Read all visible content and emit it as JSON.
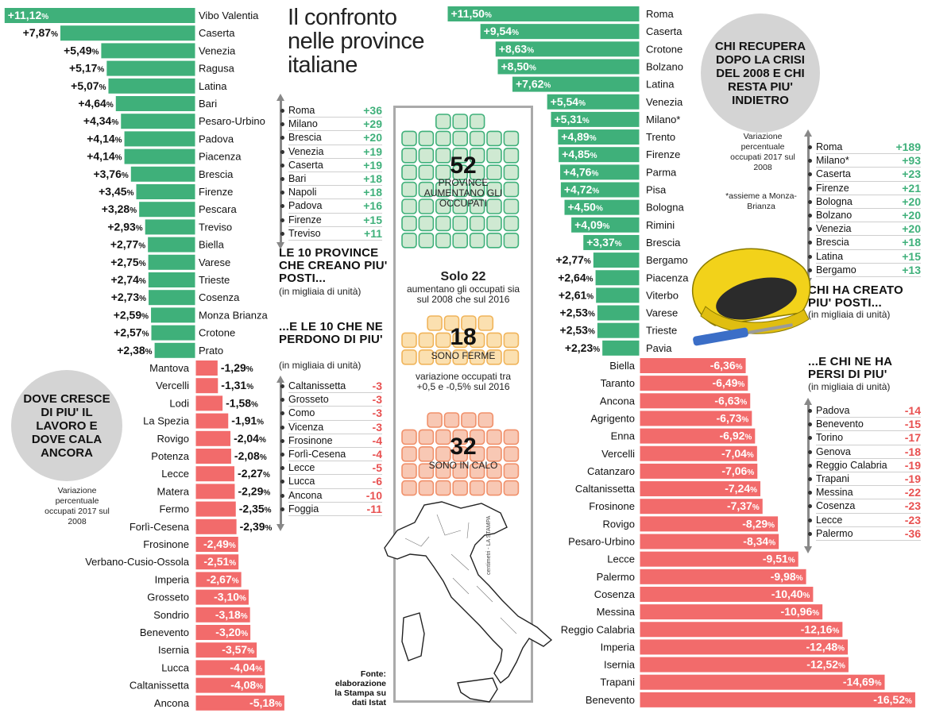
{
  "headline": "Il confronto nelle province italiane",
  "left_circle": {
    "title": "DOVE CRESCE DI PIU' IL LAVORO E DOVE CALA ANCORA",
    "note": "Variazione percentuale occupati 2017 sul 2008"
  },
  "right_circle": {
    "title": "CHI RECUPERA DOPO LA CRISI DEL 2008 E CHI RESTA PIU' INDIETRO",
    "note": "Variazione percentuale occupati 2017 sul 2008",
    "footnote": "*assieme a Monza-Brianza"
  },
  "colors": {
    "positive": "#3fb07a",
    "negative": "#f26b6b",
    "circle": "#d4d4d4",
    "helmet": "#f2d21a"
  },
  "chart_data": [
    {
      "type": "bar",
      "title": "Variazione percentuale occupati 2017 sul 2008 (province A)",
      "orientation": "horizontal",
      "unit": "%",
      "categories": [
        "Vibo Valentia",
        "Caserta",
        "Venezia",
        "Ragusa",
        "Latina",
        "Bari",
        "Pesaro-Urbino",
        "Padova",
        "Piacenza",
        "Brescia",
        "Firenze",
        "Pescara",
        "Treviso",
        "Biella",
        "Varese",
        "Trieste",
        "Cosenza",
        "Monza Brianza",
        "Crotone",
        "Prato",
        "Mantova",
        "Vercelli",
        "Lodi",
        "La Spezia",
        "Rovigo",
        "Potenza",
        "Lecce",
        "Matera",
        "Fermo",
        "Forlì-Cesena",
        "Frosinone",
        "Verbano-Cusio-Ossola",
        "Imperia",
        "Grosseto",
        "Sondrio",
        "Benevento",
        "Isernia",
        "Lucca",
        "Caltanissetta",
        "Ancona"
      ],
      "values": [
        11.12,
        7.87,
        5.49,
        5.17,
        5.07,
        4.64,
        4.34,
        4.14,
        4.14,
        3.76,
        3.45,
        3.28,
        2.93,
        2.77,
        2.75,
        2.74,
        2.73,
        2.59,
        2.57,
        2.38,
        -1.29,
        -1.31,
        -1.58,
        -1.91,
        -2.04,
        -2.08,
        -2.27,
        -2.29,
        -2.35,
        -2.39,
        -2.49,
        -2.51,
        -2.67,
        -3.1,
        -3.18,
        -3.2,
        -3.57,
        -4.04,
        -4.08,
        -5.18
      ],
      "labels": [
        "+11,12",
        "+7,87",
        "+5,49",
        "+5,17",
        "+5,07",
        "+4,64",
        "+4,34",
        "+4,14",
        "+4,14",
        "+3,76",
        "+3,45",
        "+3,28",
        "+2,93",
        "+2,77",
        "+2,75",
        "+2,74",
        "+2,73",
        "+2,59",
        "+2,57",
        "+2,38",
        "-1,29",
        "-1,31",
        "-1,58",
        "-1,91",
        "-2,04",
        "-2,08",
        "-2,27",
        "-2,29",
        "-2,35",
        "-2,39",
        "-2,49",
        "-2,51",
        "-2,67",
        "-3,10",
        "-3,18",
        "-3,20",
        "-3,57",
        "-4,04",
        "-4,08",
        "-5,18"
      ]
    },
    {
      "type": "bar",
      "title": "Variazione percentuale occupati 2017 sul 2008 (province B)",
      "orientation": "horizontal",
      "unit": "%",
      "categories": [
        "Roma",
        "Caserta",
        "Crotone",
        "Bolzano",
        "Latina",
        "Venezia",
        "Milano*",
        "Trento",
        "Firenze",
        "Parma",
        "Pisa",
        "Bologna",
        "Rimini",
        "Brescia",
        "Bergamo",
        "Piacenza",
        "Viterbo",
        "Varese",
        "Trieste",
        "Pavia",
        "Biella",
        "Taranto",
        "Ancona",
        "Agrigento",
        "Enna",
        "Vercelli",
        "Catanzaro",
        "Caltanissetta",
        "Frosinone",
        "Rovigo",
        "Pesaro-Urbino",
        "Lecce",
        "Palermo",
        "Cosenza",
        "Messina",
        "Reggio Calabria",
        "Imperia",
        "Isernia",
        "Trapani",
        "Benevento"
      ],
      "values": [
        11.5,
        9.54,
        8.63,
        8.5,
        7.62,
        5.54,
        5.31,
        4.89,
        4.85,
        4.76,
        4.72,
        4.5,
        4.09,
        3.37,
        2.77,
        2.64,
        2.61,
        2.53,
        2.53,
        2.23,
        -6.36,
        -6.49,
        -6.63,
        -6.73,
        -6.92,
        -7.04,
        -7.06,
        -7.24,
        -7.37,
        -8.29,
        -8.34,
        -9.51,
        -9.98,
        -10.4,
        -10.96,
        -12.16,
        -12.48,
        -12.52,
        -14.69,
        -16.52
      ],
      "labels": [
        "+11,50",
        "+9,54",
        "+8,63",
        "+8,50",
        "+7,62",
        "+5,54",
        "+5,31",
        "+4,89",
        "+4,85",
        "+4,76",
        "+4,72",
        "+4,50",
        "+4,09",
        "+3,37",
        "+2,77",
        "+2,64",
        "+2,61",
        "+2,53",
        "+2,53",
        "+2,23",
        "-6,36",
        "-6,49",
        "-6,63",
        "-6,73",
        "-6,92",
        "-7,04",
        "-7,06",
        "-7,24",
        "-7,37",
        "-8,29",
        "-8,34",
        "-9,51",
        "-9,98",
        "-10,40",
        "-10,96",
        "-12,16",
        "-12,48",
        "-12,52",
        "-14,69",
        "-16,52"
      ]
    },
    {
      "type": "table",
      "title": "LE 10 PROVINCE CHE CREANO PIU' POSTI...",
      "unit": "(in migliaia di unità)",
      "rows": [
        [
          "Roma",
          "+36"
        ],
        [
          "Milano",
          "+29"
        ],
        [
          "Brescia",
          "+20"
        ],
        [
          "Venezia",
          "+19"
        ],
        [
          "Caserta",
          "+19"
        ],
        [
          "Bari",
          "+18"
        ],
        [
          "Napoli",
          "+18"
        ],
        [
          "Padova",
          "+16"
        ],
        [
          "Firenze",
          "+15"
        ],
        [
          "Treviso",
          "+11"
        ]
      ]
    },
    {
      "type": "table",
      "title": "...E LE 10 CHE NE PERDONO DI PIU'",
      "unit": "(in migliaia di unità)",
      "rows": [
        [
          "Caltanissetta",
          "-3"
        ],
        [
          "Grosseto",
          "-3"
        ],
        [
          "Como",
          "-3"
        ],
        [
          "Vicenza",
          "-3"
        ],
        [
          "Frosinone",
          "-4"
        ],
        [
          "Forlì-Cesena",
          "-4"
        ],
        [
          "Lecce",
          "-5"
        ],
        [
          "Lucca",
          "-6"
        ],
        [
          "Ancona",
          "-10"
        ],
        [
          "Foggia",
          "-11"
        ]
      ]
    },
    {
      "type": "table",
      "title": "CHI HA CREATO PIU' POSTI...",
      "unit": "(in migliaia di unità)",
      "rows": [
        [
          "Roma",
          "+189"
        ],
        [
          "Milano*",
          "+93"
        ],
        [
          "Caserta",
          "+23"
        ],
        [
          "Firenze",
          "+21"
        ],
        [
          "Bologna",
          "+20"
        ],
        [
          "Bolzano",
          "+20"
        ],
        [
          "Venezia",
          "+20"
        ],
        [
          "Brescia",
          "+18"
        ],
        [
          "Latina",
          "+15"
        ],
        [
          "Bergamo",
          "+13"
        ]
      ]
    },
    {
      "type": "table",
      "title": "...E CHI NE HA PERSI DI PIU'",
      "unit": "(in migliaia di unità)",
      "rows": [
        [
          "Padova",
          "-14"
        ],
        [
          "Benevento",
          "-15"
        ],
        [
          "Torino",
          "-17"
        ],
        [
          "Genova",
          "-18"
        ],
        [
          "Reggio Calabria",
          "-19"
        ],
        [
          "Trapani",
          "-19"
        ],
        [
          "Messina",
          "-22"
        ],
        [
          "Cosenza",
          "-23"
        ],
        [
          "Lecce",
          "-23"
        ],
        [
          "Palermo",
          "-36"
        ]
      ]
    }
  ],
  "center": {
    "group_up": {
      "count": "52",
      "caption": "PROVINCE AUMENTANO GLI OCCUPATI",
      "icons": 52
    },
    "solo": {
      "title": "Solo 22",
      "caption": "aumentano gli occupati sia sul 2008 che sul 2016"
    },
    "group_flat": {
      "count": "18",
      "caption": "SONO FERME",
      "note": "variazione occupati tra +0,5 e -0,5% sul 2016",
      "icons": 18
    },
    "group_down": {
      "count": "32",
      "caption": "SONO IN CALO",
      "icons": 32
    }
  },
  "source": "Fonte: elaborazione la Stampa su dati Istat",
  "map_credit": "centimetri - LA STAMPA"
}
